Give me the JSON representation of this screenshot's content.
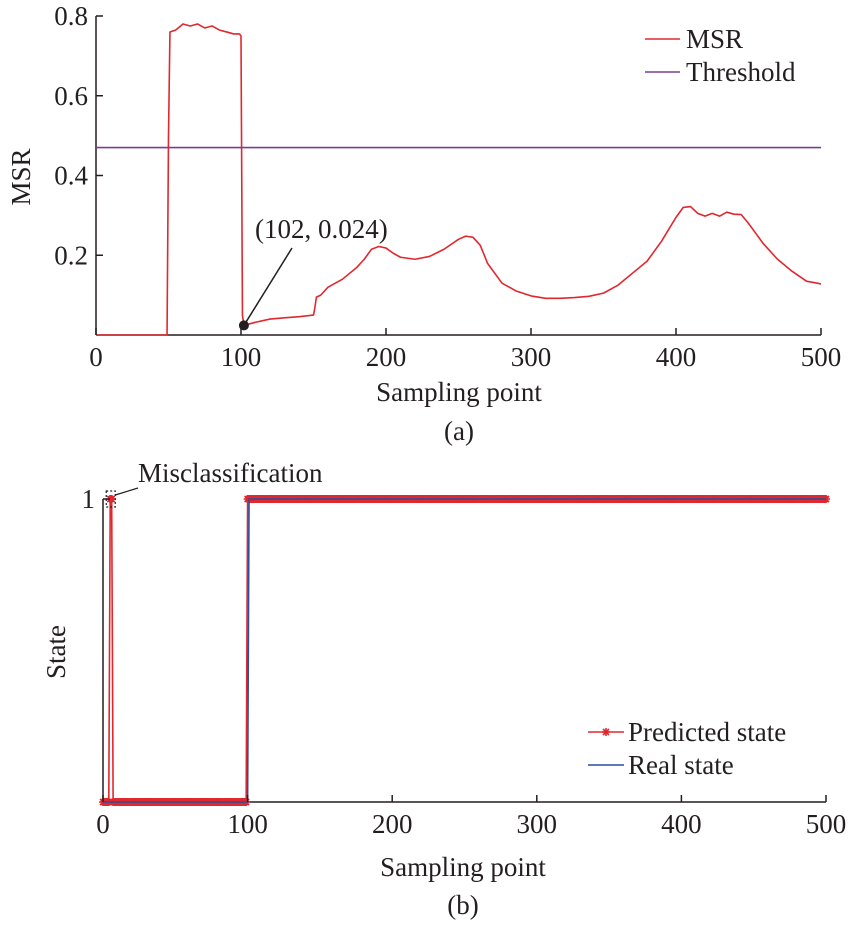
{
  "chart_data": [
    {
      "type": "line",
      "panel_label": "(a)",
      "xlabel": "Sampling point",
      "ylabel": "MSR",
      "xlim": [
        0,
        500
      ],
      "ylim": [
        0,
        0.8
      ],
      "xticks": [
        0,
        100,
        200,
        300,
        400,
        500
      ],
      "yticks": [
        0.2,
        0.4,
        0.6,
        0.8
      ],
      "xtick_labels": [
        "0",
        "100",
        "200",
        "300",
        "400",
        "500"
      ],
      "ytick_labels": [
        "0.2",
        "0.4",
        "0.6",
        "0.8"
      ],
      "legend_position": "top-right",
      "series": [
        {
          "name": "MSR",
          "color": "#e0282e",
          "x": [
            0,
            49,
            50,
            51,
            55,
            60,
            65,
            70,
            75,
            80,
            85,
            90,
            95,
            99,
            100,
            101,
            102,
            110,
            120,
            130,
            140,
            150,
            151,
            152,
            155,
            160,
            170,
            180,
            185,
            190,
            195,
            200,
            205,
            210,
            220,
            230,
            240,
            250,
            255,
            260,
            265,
            270,
            280,
            290,
            300,
            310,
            320,
            330,
            340,
            350,
            360,
            370,
            380,
            390,
            395,
            400,
            405,
            410,
            415,
            420,
            425,
            430,
            435,
            440,
            445,
            450,
            455,
            460,
            470,
            480,
            490,
            500
          ],
          "y": [
            0,
            0,
            0.5,
            0.76,
            0.765,
            0.78,
            0.775,
            0.78,
            0.77,
            0.775,
            0.765,
            0.76,
            0.755,
            0.755,
            0.75,
            0.05,
            0.024,
            0.032,
            0.04,
            0.043,
            0.046,
            0.05,
            0.07,
            0.095,
            0.1,
            0.12,
            0.14,
            0.17,
            0.19,
            0.215,
            0.222,
            0.218,
            0.205,
            0.195,
            0.19,
            0.197,
            0.215,
            0.24,
            0.248,
            0.245,
            0.225,
            0.18,
            0.13,
            0.11,
            0.098,
            0.092,
            0.092,
            0.094,
            0.097,
            0.105,
            0.125,
            0.155,
            0.185,
            0.235,
            0.265,
            0.295,
            0.32,
            0.322,
            0.305,
            0.298,
            0.305,
            0.298,
            0.308,
            0.303,
            0.302,
            0.28,
            0.255,
            0.23,
            0.19,
            0.16,
            0.135,
            0.128
          ]
        },
        {
          "name": "Threshold",
          "color": "#7b3f8f",
          "x": [
            0,
            500
          ],
          "y": [
            0.47,
            0.47
          ]
        }
      ],
      "annotation": {
        "text": "(102, 0.024)",
        "x": 102,
        "y": 0.024
      }
    },
    {
      "type": "line",
      "panel_label": "(b)",
      "xlabel": "Sampling point",
      "ylabel": "State",
      "xlim": [
        0,
        500
      ],
      "ylim": [
        0,
        1
      ],
      "xticks": [
        0,
        100,
        200,
        300,
        400,
        500
      ],
      "yticks": [
        1
      ],
      "xtick_labels": [
        "0",
        "100",
        "200",
        "300",
        "400",
        "500"
      ],
      "ytick_labels": [
        "1"
      ],
      "legend_position": "bottom-right",
      "annotation": {
        "text": "Misclassification",
        "x": 5,
        "y": 1
      },
      "series": [
        {
          "name": "Predicted state",
          "color": "#e0282e",
          "marker": "asterisk",
          "x": [
            0,
            4,
            5,
            6,
            7,
            99,
            100,
            500
          ],
          "y": [
            0,
            0,
            1,
            1,
            0,
            0,
            1,
            1
          ]
        },
        {
          "name": "Real state",
          "color": "#2b4e9e",
          "x": [
            0,
            100,
            101,
            500
          ],
          "y": [
            0,
            0,
            1,
            1
          ]
        }
      ]
    }
  ]
}
